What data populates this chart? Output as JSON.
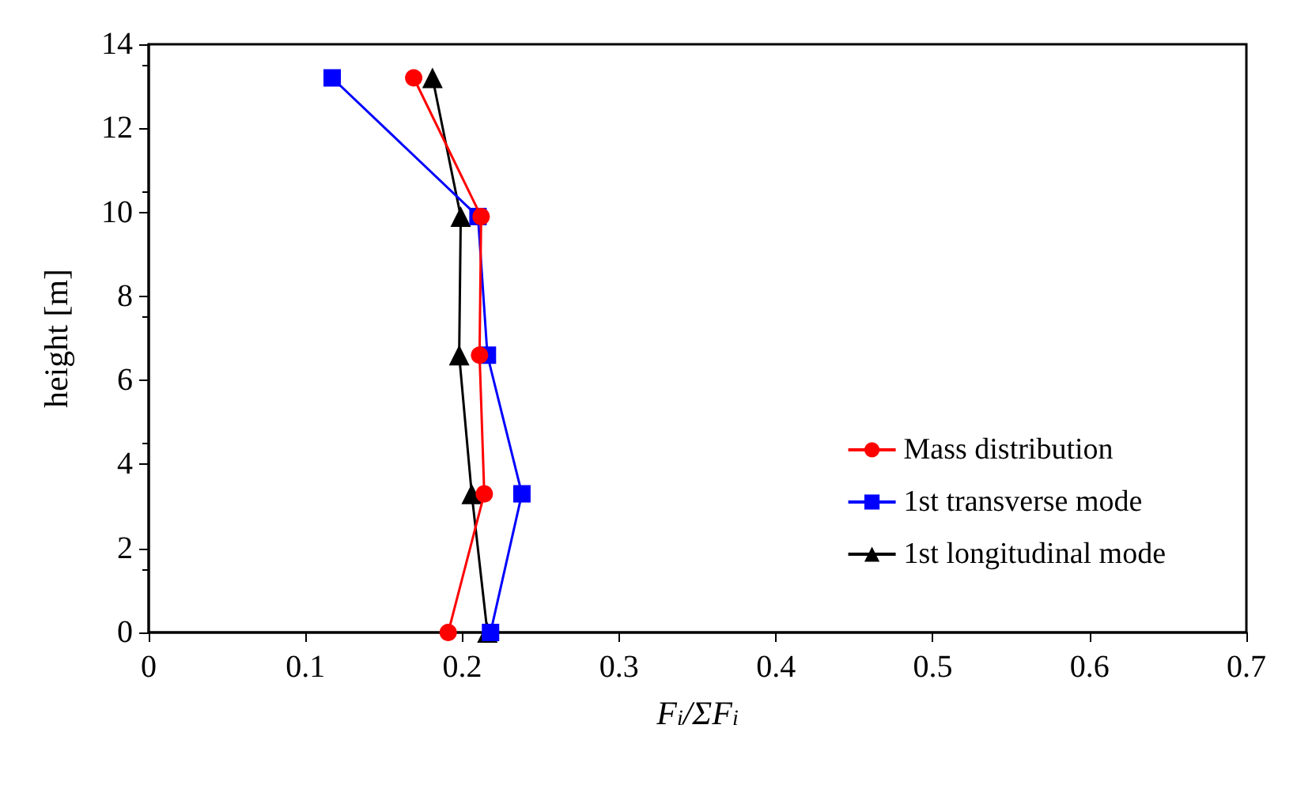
{
  "chart_data": {
    "type": "line",
    "xlabel": "F$_{i}$/ΣF$_{i}$",
    "ylabel": "height [m]",
    "xlim": [
      0,
      0.7
    ],
    "xticks": [
      0,
      0.1,
      0.2,
      0.3,
      0.4,
      0.5,
      0.6,
      0.7
    ],
    "ylim": [
      0,
      14
    ],
    "yticks": [
      0,
      2,
      4,
      6,
      8,
      10,
      12,
      14
    ],
    "grid": false,
    "legend": "right",
    "line_style": "solid",
    "series": [
      {
        "name": "Mass distribution",
        "color": "#ff0000",
        "marker": "circle",
        "x": [
          0.191,
          0.214,
          0.211,
          0.212,
          0.169
        ],
        "values": [
          0,
          3.3,
          6.6,
          9.9,
          13.2
        ]
      },
      {
        "name": "1st transverse mode",
        "color": "#0000ff",
        "marker": "square",
        "x": [
          0.218,
          0.238,
          0.216,
          0.21,
          0.117
        ],
        "values": [
          0,
          3.3,
          6.6,
          9.9,
          13.2
        ]
      },
      {
        "name": "1st longitudinal mode",
        "color": "#000000",
        "marker": "triangle",
        "x": [
          0.216,
          0.206,
          0.198,
          0.199,
          0.181
        ],
        "values": [
          0,
          3.3,
          6.6,
          9.9,
          13.2
        ]
      }
    ]
  }
}
